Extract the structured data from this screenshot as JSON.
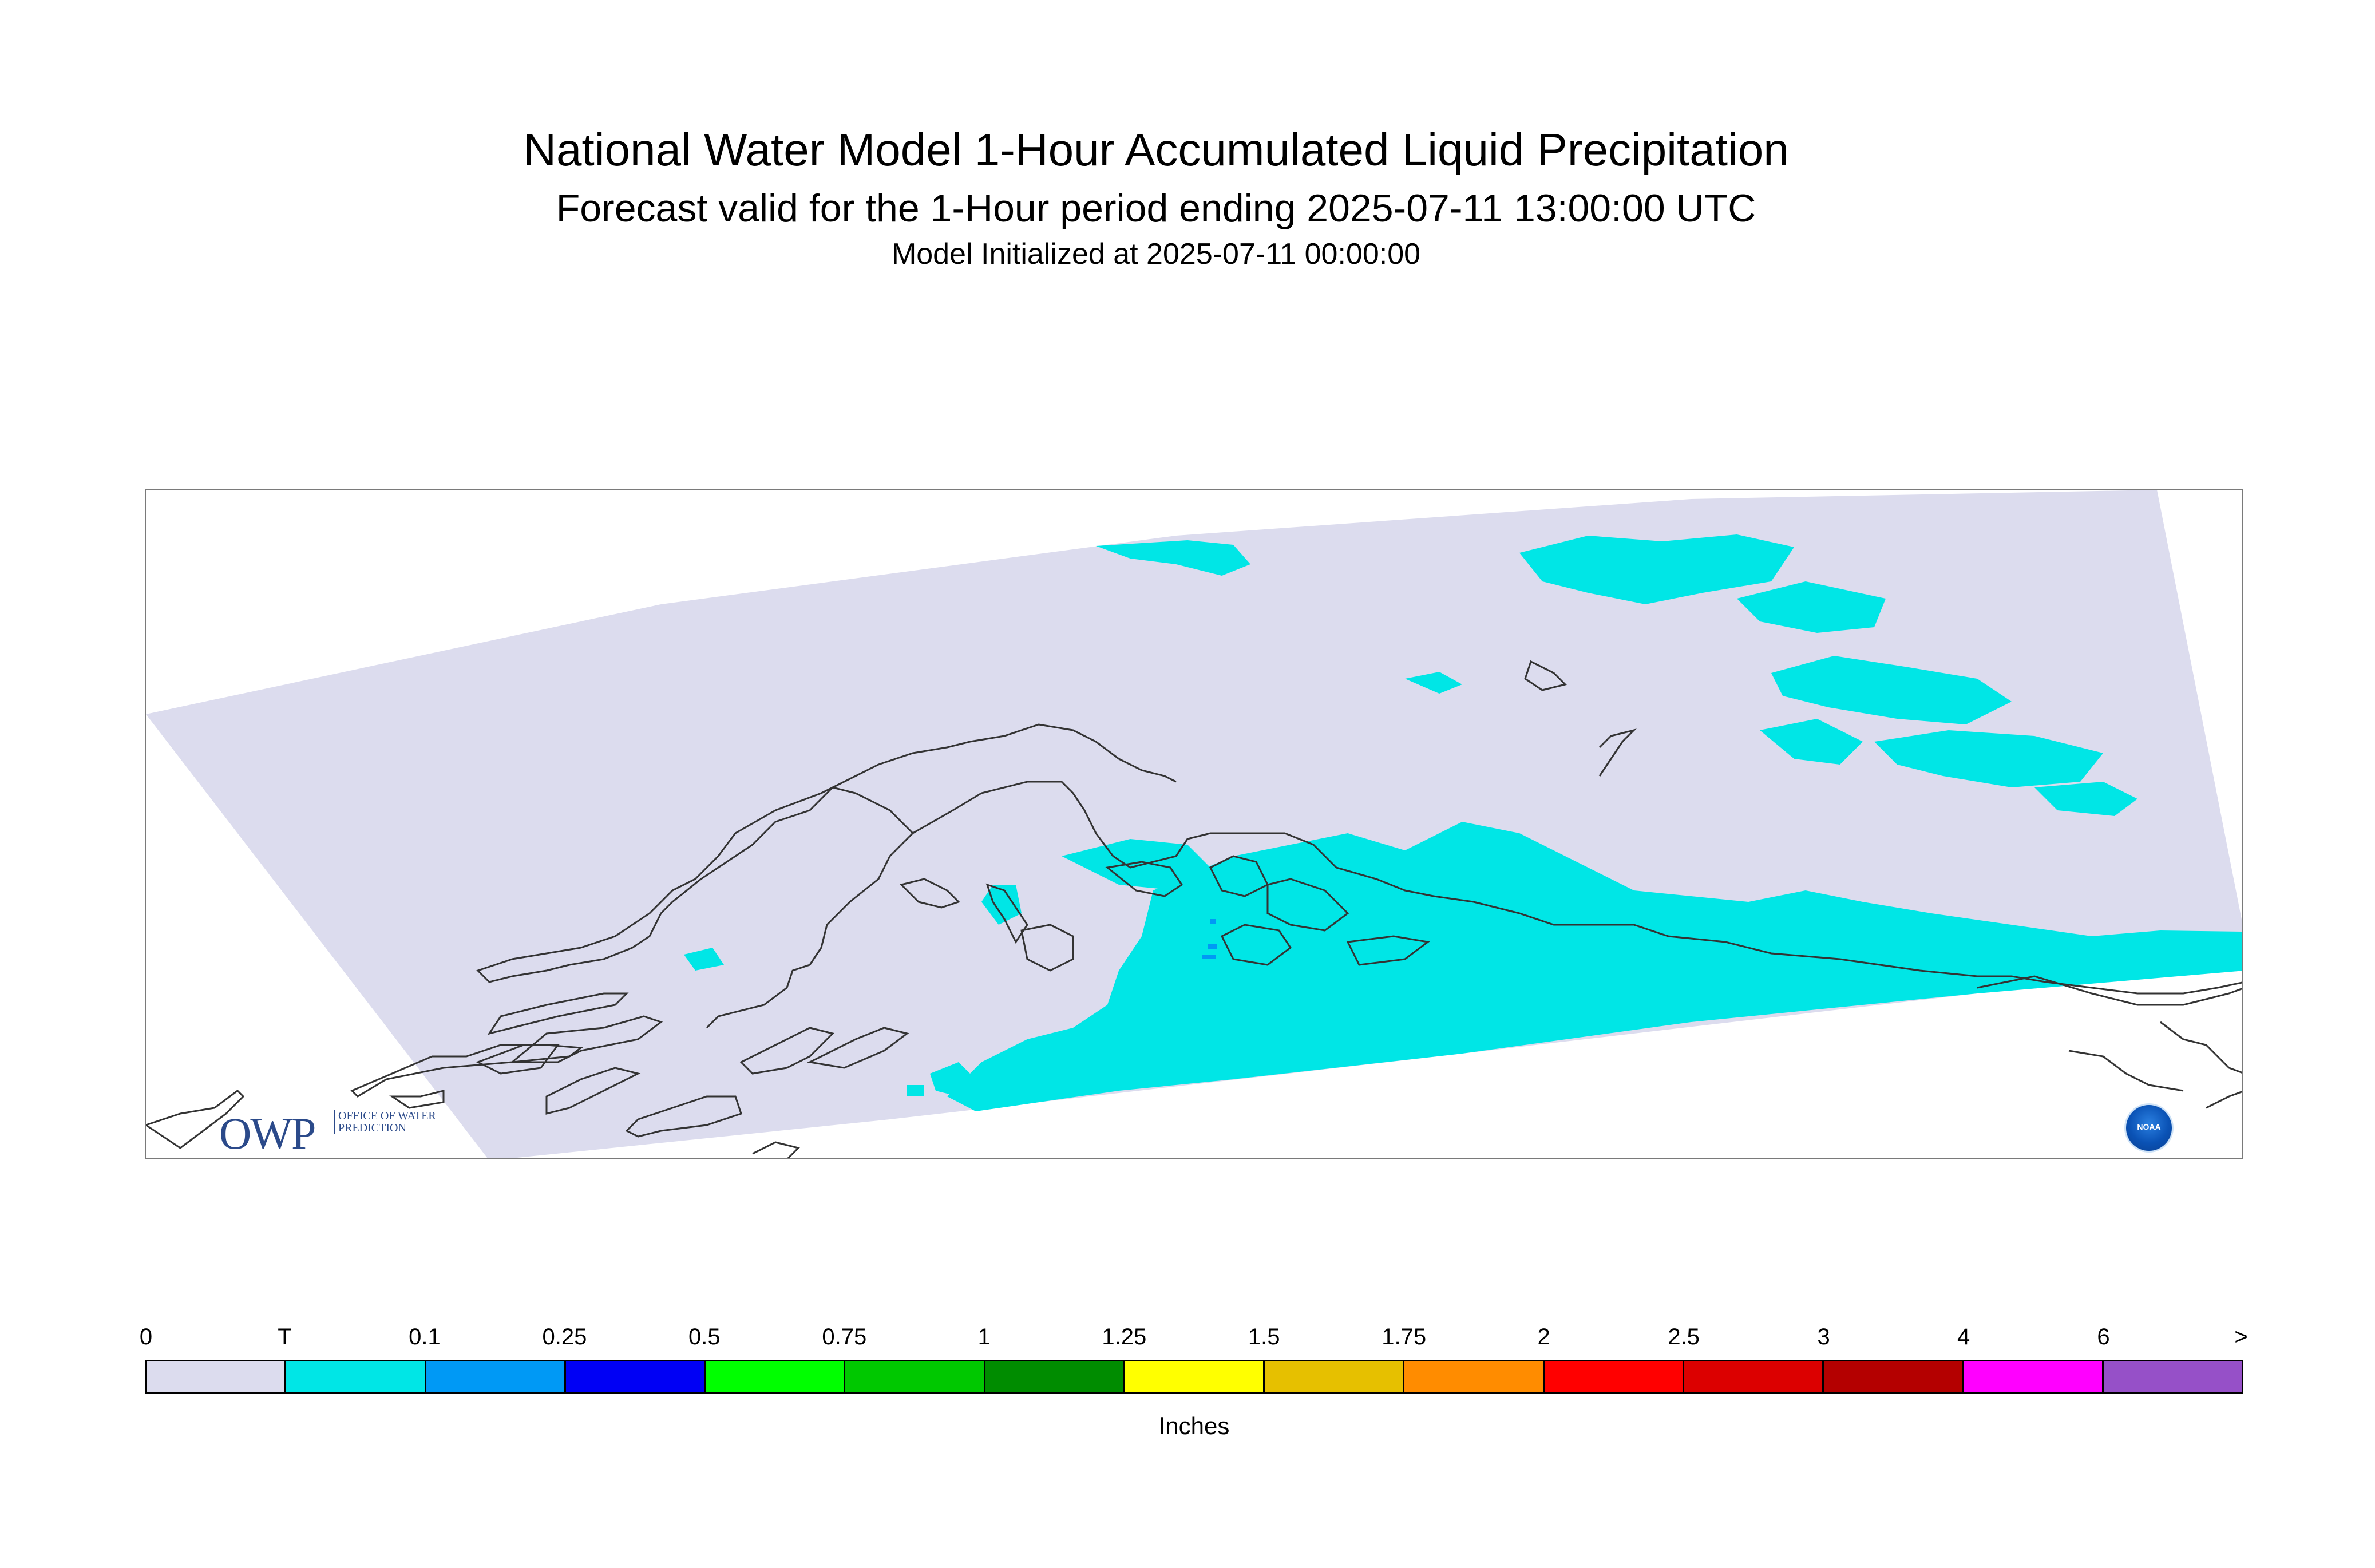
{
  "title": "National Water Model 1-Hour Accumulated Liquid Precipitation",
  "subtitle": "Forecast valid for the 1-Hour period ending 2025-07-11 13:00:00 UTC",
  "init_line": "Model Initialized at 2025-07-11 00:00:00",
  "logos": {
    "owp_letters": "OWP",
    "owp_sub": "OFFICE OF WATER PREDICTION",
    "noaa": "NOAA"
  },
  "legend": {
    "unit": "Inches",
    "tick_labels": [
      "0",
      "T",
      "0.1",
      "0.25",
      "0.5",
      "0.75",
      "1",
      "1.25",
      "1.5",
      "1.75",
      "2",
      "2.5",
      "3",
      "4",
      "6",
      ">"
    ],
    "colors": [
      "#dcdcee",
      "#00e6e6",
      "#0099f5",
      "#0000f5",
      "#00ff00",
      "#00c800",
      "#008c00",
      "#ffff00",
      "#e6c000",
      "#ff8c00",
      "#ff0000",
      "#dc0000",
      "#b40000",
      "#ff00ff",
      "#9650c8"
    ]
  },
  "map": {
    "domain_fill": "#dcdcee",
    "precip_fill_trace": "#00e6e6",
    "precip_fill_light": "#0099f5",
    "coast_color": "#333333"
  }
}
